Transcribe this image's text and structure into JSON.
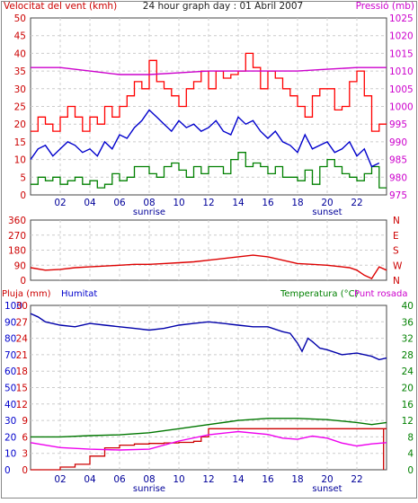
{
  "header": {
    "left_title": "Velocitat del vent (kmh)",
    "center_title": "24 hour graph day : 01 Abril 2007",
    "right_title": "Pressió (mb)"
  },
  "colors": {
    "wind_gust": "#ff0000",
    "wind_avg": "#0000cc",
    "wind_min": "#008000",
    "pressure": "#cc00cc",
    "direction": "#dd0000",
    "rain": "#cc0000",
    "humidity": "#0000aa",
    "temperature": "#007700",
    "dewpoint": "#ee00ee",
    "label_left": "#cc0000",
    "label_blue": "#0000cc",
    "label_right": "#cc00cc"
  },
  "x_ticks": [
    "02",
    "04",
    "06",
    "08",
    "10",
    "12",
    "14",
    "16",
    "18",
    "20",
    "22"
  ],
  "sunrise_label": "sunrise",
  "sunset_label": "sunset",
  "chart_data": [
    {
      "type": "line",
      "title": "24 hour graph day : 01 Abril 2007",
      "x_range": [
        0,
        24
      ],
      "ylabel": "Velocitat del vent (kmh)",
      "ylim": [
        0,
        50
      ],
      "y_ticks": [
        0,
        5,
        10,
        15,
        20,
        25,
        30,
        35,
        40,
        45,
        50
      ],
      "y2label": "Pressió (mb)",
      "y2lim": [
        975,
        1025
      ],
      "y2_ticks": [
        975,
        980,
        985,
        990,
        995,
        1000,
        1005,
        1010,
        1015,
        1020,
        1025
      ],
      "grid": true,
      "series": [
        {
          "name": "Velocitat del vent (kmh)",
          "axis": "left",
          "style": "step-band",
          "x": [
            0,
            0.5,
            1,
            1.5,
            2,
            2.5,
            3,
            3.5,
            4,
            4.5,
            5,
            5.5,
            6,
            6.5,
            7,
            7.5,
            8,
            8.5,
            9,
            9.5,
            10,
            10.5,
            11,
            11.5,
            12,
            12.5,
            13,
            13.5,
            14,
            14.5,
            15,
            15.5,
            16,
            16.5,
            17,
            17.5,
            18,
            18.5,
            19,
            19.5,
            20,
            20.5,
            21,
            21.5,
            22,
            22.5,
            23,
            23.5
          ],
          "min": [
            3,
            5,
            4,
            5,
            3,
            4,
            5,
            3,
            4,
            2,
            3,
            6,
            4,
            5,
            8,
            8,
            6,
            5,
            8,
            9,
            7,
            5,
            8,
            6,
            8,
            8,
            6,
            10,
            12,
            8,
            9,
            8,
            6,
            8,
            5,
            5,
            4,
            7,
            3,
            8,
            10,
            8,
            6,
            5,
            4,
            6,
            8,
            2
          ],
          "max": [
            18,
            22,
            20,
            18,
            22,
            25,
            22,
            18,
            22,
            20,
            25,
            22,
            25,
            28,
            32,
            30,
            38,
            32,
            30,
            28,
            25,
            30,
            32,
            35,
            30,
            35,
            33,
            34,
            35,
            40,
            36,
            30,
            35,
            33,
            30,
            28,
            25,
            22,
            28,
            30,
            30,
            24,
            25,
            32,
            35,
            28,
            18,
            20
          ]
        },
        {
          "name": "Velocitat mitjana",
          "axis": "left",
          "style": "line",
          "x": [
            0,
            0.5,
            1,
            1.5,
            2,
            2.5,
            3,
            3.5,
            4,
            4.5,
            5,
            5.5,
            6,
            6.5,
            7,
            7.5,
            8,
            8.5,
            9,
            9.5,
            10,
            10.5,
            11,
            11.5,
            12,
            12.5,
            13,
            13.5,
            14,
            14.5,
            15,
            15.5,
            16,
            16.5,
            17,
            17.5,
            18,
            18.5,
            19,
            19.5,
            20,
            20.5,
            21,
            21.5,
            22,
            22.5,
            23,
            23.5
          ],
          "values": [
            10,
            13,
            14,
            11,
            13,
            15,
            14,
            12,
            13,
            11,
            15,
            13,
            17,
            16,
            19,
            21,
            24,
            22,
            20,
            18,
            21,
            19,
            20,
            18,
            19,
            21,
            18,
            17,
            22,
            20,
            21,
            18,
            16,
            18,
            15,
            14,
            12,
            17,
            13,
            14,
            15,
            12,
            13,
            15,
            11,
            13,
            8,
            9
          ]
        },
        {
          "name": "Pressió (mb)",
          "axis": "right",
          "x": [
            0,
            2,
            4,
            6,
            8,
            10,
            12,
            14,
            16,
            18,
            20,
            22,
            23,
            24
          ],
          "values": [
            1011,
            1011,
            1010,
            1009,
            1009,
            1009.5,
            1010,
            1010,
            1010,
            1010,
            1010.5,
            1011,
            1011,
            1011
          ]
        }
      ]
    },
    {
      "type": "line",
      "x_range": [
        0,
        24
      ],
      "ylim": [
        0,
        360
      ],
      "y_ticks": [
        0,
        90,
        180,
        270,
        360
      ],
      "y2_ticks": [
        "N",
        "E",
        "S",
        "W",
        "N"
      ],
      "grid": true,
      "series": [
        {
          "name": "Direcció del vent",
          "x": [
            0,
            1,
            2,
            3,
            4,
            5,
            6,
            7,
            8,
            9,
            10,
            11,
            12,
            13,
            14,
            15,
            16,
            17,
            18,
            19,
            20,
            21,
            21.5,
            22,
            22.5,
            23,
            23.5,
            24
          ],
          "values": [
            75,
            60,
            65,
            75,
            80,
            85,
            90,
            95,
            95,
            100,
            105,
            110,
            120,
            130,
            140,
            150,
            140,
            120,
            100,
            95,
            90,
            80,
            75,
            60,
            30,
            10,
            80,
            60
          ]
        }
      ]
    },
    {
      "type": "line",
      "x_range": [
        0,
        24
      ],
      "y_title_left_a": "Pluja (mm)",
      "y_title_left_b": "Humitat",
      "y_title_right_a": "Temperatura (°C)",
      "y_title_right_b": "Punt rosada",
      "humidity_ticks": [
        0,
        10,
        20,
        30,
        40,
        50,
        60,
        70,
        80,
        90,
        100
      ],
      "rain_ticks": [
        0,
        3,
        6,
        9,
        12,
        15,
        18,
        21,
        24,
        27,
        30
      ],
      "temp_ticks": [
        0,
        4,
        8,
        12,
        16,
        20,
        24,
        28,
        32,
        36,
        40
      ],
      "grid": true,
      "series": [
        {
          "name": "Humitat",
          "axis": "humidity",
          "x": [
            0,
            0.5,
            1,
            2,
            3,
            4,
            5,
            6,
            7,
            8,
            9,
            10,
            11,
            12,
            13,
            14,
            15,
            16,
            17,
            17.5,
            18,
            18.3,
            18.7,
            19,
            19.5,
            20,
            21,
            22,
            23,
            23.5,
            24
          ],
          "values": [
            95,
            93,
            90,
            88,
            87,
            89,
            88,
            87,
            86,
            85,
            86,
            88,
            89,
            90,
            89,
            88,
            87,
            87,
            84,
            83,
            77,
            72,
            80,
            78,
            74,
            73,
            70,
            71,
            69,
            67,
            68
          ]
        },
        {
          "name": "Pluja (mm)",
          "axis": "rain",
          "x": [
            0,
            1,
            2,
            3,
            4,
            5,
            6,
            7,
            8,
            9,
            10,
            11,
            11.5,
            12,
            24
          ],
          "values": [
            0,
            0,
            0.5,
            1,
            2.5,
            4,
            4.5,
            4.7,
            4.8,
            4.9,
            5,
            5.2,
            6,
            7.5,
            7.5
          ]
        },
        {
          "name": "Temperatura (°C)",
          "axis": "temp",
          "x": [
            0,
            2,
            4,
            6,
            8,
            10,
            12,
            14,
            16,
            18,
            20,
            22,
            23,
            24
          ],
          "values": [
            8,
            8,
            8.3,
            8.5,
            9,
            10,
            11,
            12,
            12.5,
            12.5,
            12.2,
            11.5,
            11,
            11.5
          ]
        },
        {
          "name": "Punt rosada",
          "axis": "temp",
          "x": [
            0,
            1,
            2,
            4,
            6,
            8,
            10,
            12,
            14,
            16,
            17,
            18,
            19,
            20,
            21,
            22,
            23,
            24
          ],
          "values": [
            6.6,
            6,
            5.4,
            5,
            4.8,
            5,
            7,
            8.5,
            9.3,
            8.6,
            7.7,
            7.4,
            8.2,
            7.7,
            6.5,
            5.8,
            6.3,
            6.6
          ]
        }
      ]
    }
  ]
}
